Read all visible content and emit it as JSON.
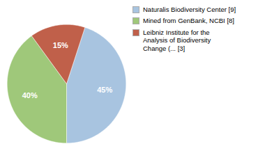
{
  "chart_data": {
    "type": "pie",
    "categories": [
      "Naturalis Biodiversity Center [9]",
      "Mined from GenBank, NCBI [8]",
      "Leibniz Institute for the\nAnalysis of Biodiversity\nChange (... [3]"
    ],
    "values": [
      45,
      40,
      15
    ],
    "value_labels": [
      "45%",
      "40%",
      "15%"
    ],
    "colors": [
      "#a8c4e0",
      "#9fc87a",
      "#c0604a"
    ],
    "data_labels": true,
    "legend": "right"
  }
}
